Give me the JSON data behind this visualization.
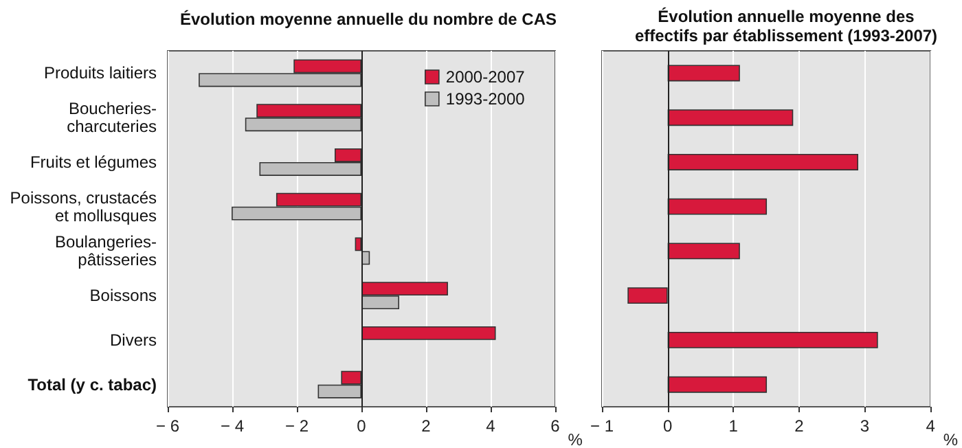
{
  "chart_data": [
    {
      "type": "bar",
      "orientation": "horizontal",
      "title": "Évolution moyenne annuelle du nombre de CAS",
      "xlabel": "%",
      "categories": [
        "Produits laitiers",
        "Boucheries-\ncharcuteries",
        "Fruits et légumes",
        "Poissons, crustacés\net mollusques",
        "Boulangeries-\npâtisseries",
        "Boissons",
        "Divers",
        "Total (y c. tabac)"
      ],
      "series": [
        {
          "name": "2000-2007",
          "color": "#d7193c",
          "values": [
            -2.1,
            -3.25,
            -0.83,
            -2.64,
            -0.2,
            2.68,
            4.16,
            -0.63
          ]
        },
        {
          "name": "1993-2000",
          "color": "#bebebe",
          "values": [
            -5.04,
            -3.6,
            -3.16,
            -4.02,
            0.26,
            1.17,
            null,
            -1.35
          ]
        }
      ],
      "xlim": [
        -6,
        6
      ],
      "xticks": [
        -6,
        -4,
        -2,
        0,
        2,
        4,
        6
      ],
      "grid": "x",
      "legend": "top right"
    },
    {
      "type": "bar",
      "orientation": "horizontal",
      "title": "Évolution annuelle moyenne des\neffectifs par établissement (1993-2007)",
      "xlabel": "%",
      "categories": [
        null,
        null,
        null,
        null,
        null,
        null,
        null,
        null
      ],
      "series": [
        {
          "color": "#d7193c",
          "values": [
            1.1,
            1.91,
            2.9,
            1.51,
            1.1,
            -0.61,
            3.2,
            1.51
          ]
        }
      ],
      "xlim": [
        -1,
        4
      ],
      "xticks": [
        -1,
        0,
        1,
        2,
        3,
        4
      ],
      "grid": "x",
      "tick_labels": "x"
    }
  ]
}
